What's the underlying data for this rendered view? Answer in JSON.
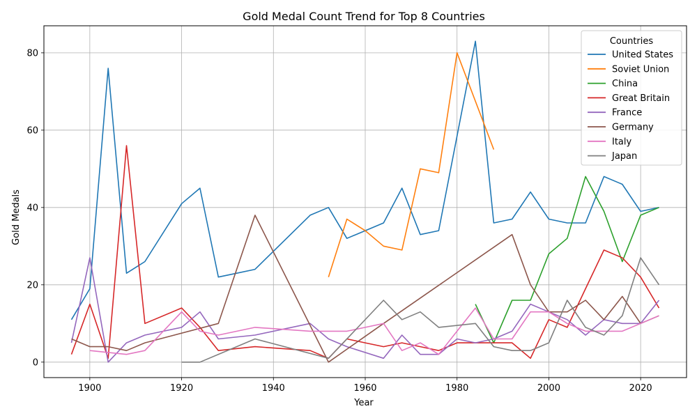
{
  "chart_data": {
    "type": "line",
    "title": "Gold Medal Count Trend for Top 8 Countries",
    "xlabel": "Year",
    "ylabel": "Gold Medals",
    "xlim": [
      1890,
      2030
    ],
    "ylim": [
      -4,
      87
    ],
    "xticks": [
      1900,
      1920,
      1940,
      1960,
      1980,
      2000,
      2020
    ],
    "yticks": [
      0,
      20,
      40,
      60,
      80
    ],
    "grid": true,
    "legend": {
      "title": "Countries",
      "placement": "top-right"
    },
    "series": [
      {
        "name": "United States",
        "color": "#1f77b4",
        "points": [
          [
            1896,
            11
          ],
          [
            1900,
            19
          ],
          [
            1904,
            76
          ],
          [
            1908,
            23
          ],
          [
            1912,
            26
          ],
          [
            1920,
            41
          ],
          [
            1924,
            45
          ],
          [
            1928,
            22
          ],
          [
            1932,
            23
          ],
          [
            1936,
            24
          ],
          [
            1948,
            38
          ],
          [
            1952,
            40
          ],
          [
            1956,
            32
          ],
          [
            1960,
            34
          ],
          [
            1964,
            36
          ],
          [
            1968,
            45
          ],
          [
            1972,
            33
          ],
          [
            1976,
            34
          ],
          [
            1984,
            83
          ],
          [
            1988,
            36
          ],
          [
            1992,
            37
          ],
          [
            1996,
            44
          ],
          [
            2000,
            37
          ],
          [
            2004,
            36
          ],
          [
            2008,
            36
          ],
          [
            2012,
            48
          ],
          [
            2016,
            46
          ],
          [
            2020,
            39
          ],
          [
            2024,
            40
          ]
        ]
      },
      {
        "name": "Soviet Union",
        "color": "#ff7f0e",
        "points": [
          [
            1952,
            22
          ],
          [
            1956,
            37
          ],
          [
            1960,
            34
          ],
          [
            1964,
            30
          ],
          [
            1968,
            29
          ],
          [
            1972,
            50
          ],
          [
            1976,
            49
          ],
          [
            1980,
            80
          ],
          [
            1988,
            55
          ]
        ]
      },
      {
        "name": "China",
        "color": "#2ca02c",
        "points": [
          [
            1984,
            15
          ],
          [
            1988,
            5
          ],
          [
            1992,
            16
          ],
          [
            1996,
            16
          ],
          [
            2000,
            28
          ],
          [
            2004,
            32
          ],
          [
            2008,
            48
          ],
          [
            2012,
            39
          ],
          [
            2016,
            26
          ],
          [
            2020,
            38
          ],
          [
            2024,
            40
          ]
        ]
      },
      {
        "name": "Great Britain",
        "color": "#d62728",
        "points": [
          [
            1896,
            2
          ],
          [
            1900,
            15
          ],
          [
            1904,
            1
          ],
          [
            1908,
            56
          ],
          [
            1912,
            10
          ],
          [
            1920,
            14
          ],
          [
            1924,
            9
          ],
          [
            1928,
            3
          ],
          [
            1936,
            4
          ],
          [
            1948,
            3
          ],
          [
            1952,
            1
          ],
          [
            1956,
            6
          ],
          [
            1960,
            5
          ],
          [
            1964,
            4
          ],
          [
            1968,
            5
          ],
          [
            1972,
            4
          ],
          [
            1976,
            3
          ],
          [
            1980,
            5
          ],
          [
            1984,
            5
          ],
          [
            1988,
            5
          ],
          [
            1992,
            5
          ],
          [
            1996,
            1
          ],
          [
            2000,
            11
          ],
          [
            2004,
            9
          ],
          [
            2008,
            19
          ],
          [
            2012,
            29
          ],
          [
            2016,
            27
          ],
          [
            2020,
            22
          ],
          [
            2024,
            14
          ]
        ]
      },
      {
        "name": "France",
        "color": "#9467bd",
        "points": [
          [
            1896,
            5
          ],
          [
            1900,
            27
          ],
          [
            1904,
            0
          ],
          [
            1908,
            5
          ],
          [
            1912,
            7
          ],
          [
            1920,
            9
          ],
          [
            1924,
            13
          ],
          [
            1928,
            6
          ],
          [
            1936,
            7
          ],
          [
            1948,
            10
          ],
          [
            1952,
            6
          ],
          [
            1956,
            4
          ],
          [
            1964,
            1
          ],
          [
            1968,
            7
          ],
          [
            1972,
            2
          ],
          [
            1976,
            2
          ],
          [
            1980,
            6
          ],
          [
            1984,
            5
          ],
          [
            1988,
            6
          ],
          [
            1992,
            8
          ],
          [
            1996,
            15
          ],
          [
            2000,
            13
          ],
          [
            2004,
            11
          ],
          [
            2008,
            7
          ],
          [
            2012,
            11
          ],
          [
            2016,
            10
          ],
          [
            2020,
            10
          ],
          [
            2024,
            16
          ]
        ]
      },
      {
        "name": "Germany",
        "color": "#8c564b",
        "points": [
          [
            1896,
            6
          ],
          [
            1900,
            4
          ],
          [
            1904,
            4
          ],
          [
            1908,
            3
          ],
          [
            1912,
            5
          ],
          [
            1928,
            10
          ],
          [
            1936,
            38
          ],
          [
            1952,
            0
          ],
          [
            1964,
            10
          ],
          [
            1992,
            33
          ],
          [
            1996,
            20
          ],
          [
            2000,
            13
          ],
          [
            2004,
            13
          ],
          [
            2008,
            16
          ],
          [
            2012,
            11
          ],
          [
            2016,
            17
          ],
          [
            2020,
            10
          ],
          [
            2024,
            12
          ]
        ]
      },
      {
        "name": "Italy",
        "color": "#e377c2",
        "points": [
          [
            1900,
            3
          ],
          [
            1908,
            2
          ],
          [
            1912,
            3
          ],
          [
            1920,
            13
          ],
          [
            1924,
            8
          ],
          [
            1928,
            7
          ],
          [
            1936,
            9
          ],
          [
            1948,
            8
          ],
          [
            1952,
            8
          ],
          [
            1956,
            8
          ],
          [
            1960,
            9
          ],
          [
            1964,
            10
          ],
          [
            1968,
            3
          ],
          [
            1972,
            5
          ],
          [
            1976,
            2
          ],
          [
            1980,
            8
          ],
          [
            1984,
            14
          ],
          [
            1988,
            6
          ],
          [
            1992,
            6
          ],
          [
            1996,
            13
          ],
          [
            2000,
            13
          ],
          [
            2004,
            10
          ],
          [
            2008,
            8
          ],
          [
            2012,
            8
          ],
          [
            2016,
            8
          ],
          [
            2020,
            10
          ],
          [
            2024,
            12
          ]
        ]
      },
      {
        "name": "Japan",
        "color": "#7f7f7f",
        "points": [
          [
            1920,
            0
          ],
          [
            1924,
            0
          ],
          [
            1936,
            6
          ],
          [
            1952,
            1
          ],
          [
            1964,
            16
          ],
          [
            1968,
            11
          ],
          [
            1972,
            13
          ],
          [
            1976,
            9
          ],
          [
            1984,
            10
          ],
          [
            1988,
            4
          ],
          [
            1992,
            3
          ],
          [
            1996,
            3
          ],
          [
            2000,
            5
          ],
          [
            2004,
            16
          ],
          [
            2008,
            9
          ],
          [
            2012,
            7
          ],
          [
            2016,
            12
          ],
          [
            2020,
            27
          ],
          [
            2024,
            20
          ]
        ]
      }
    ]
  }
}
